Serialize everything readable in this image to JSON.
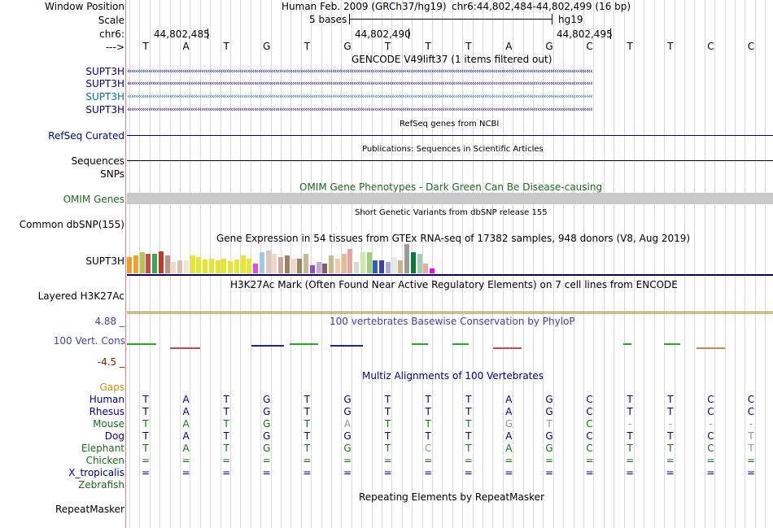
{
  "header": {
    "window_position_label": "Window Position",
    "window_title": "Human Feb. 2009 (GRCh37/hg19)",
    "window_range": "chr6:44,802,484-44,802,499 (16 bp)",
    "scale_label": "Scale",
    "scale_text": "5 bases",
    "assembly": "hg19",
    "chrom_label": "chr6:",
    "coord_ticks": [
      "44,802,485",
      "44,802,490",
      "44,802,495"
    ],
    "strand_label": "--->"
  },
  "bases": [
    "T",
    "A",
    "T",
    "G",
    "T",
    "G",
    "T",
    "T",
    "T",
    "A",
    "G",
    "C",
    "T",
    "T",
    "C",
    "C"
  ],
  "tracks": {
    "gencode": {
      "title": "GENCODE V49lift37 (1 items filtered out)",
      "rows": [
        "SUPT3H",
        "SUPT3H",
        "SUPT3H",
        "SUPT3H"
      ]
    },
    "refseq": {
      "label": "RefSeq Curated",
      "title": "RefSeq genes from NCBI"
    },
    "publications": {
      "title": "Publications: Sequences in Scientific Articles",
      "label": "Sequences"
    },
    "snps_label": "SNPs",
    "omim": {
      "title": "OMIM Gene Phenotypes - Dark Green Can Be Disease-causing",
      "label": "OMIM Genes"
    },
    "dbsnp": {
      "label": "Common dbSNP(155)",
      "title": "Short Genetic Variants from dbSNP release 155"
    },
    "gtex": {
      "title": "Gene Expression in 54 tissues from GTEx RNA-seq of 17382 samples, 948 donors (V8, Aug 2019)",
      "label": "SUPT3H"
    },
    "h3k27ac": {
      "title": "H3K27Ac Mark (Often Found Near Active Regulatory Elements) on 7 cell lines from ENCODE",
      "label": "Layered H3K27Ac"
    },
    "phylop": {
      "title": "100 vertebrates Basewise Conservation by PhyloP",
      "label": "100 Vert. Cons",
      "max": "4.88 _",
      "min": "-4.5 _"
    },
    "gaps_label": "Gaps",
    "multiz": {
      "title": "Multiz Alignments of 100 Vertebrates",
      "species": [
        {
          "name": "Human",
          "seq": [
            "T",
            "A",
            "T",
            "G",
            "T",
            "G",
            "T",
            "T",
            "T",
            "A",
            "G",
            "C",
            "T",
            "T",
            "C",
            "C"
          ]
        },
        {
          "name": "Rhesus",
          "seq": [
            "T",
            "A",
            "T",
            "G",
            "T",
            "G",
            "T",
            "T",
            "T",
            "A",
            "G",
            "C",
            "T",
            "T",
            "C",
            "C"
          ]
        },
        {
          "name": "Mouse",
          "seq": [
            "T",
            "A",
            "T",
            "G",
            "T",
            "A",
            "T",
            "T",
            "T",
            "G",
            "T",
            "C",
            "-",
            "-",
            "-",
            "-"
          ]
        },
        {
          "name": "Dog",
          "seq": [
            "T",
            "A",
            "T",
            "G",
            "T",
            "G",
            "T",
            "T",
            "T",
            "A",
            "G",
            "C",
            "T",
            "T",
            "C",
            "T"
          ]
        },
        {
          "name": "Elephant",
          "seq": [
            "T",
            "A",
            "T",
            "G",
            "T",
            "G",
            "T",
            "C",
            "T",
            "A",
            "G",
            "C",
            "T",
            "T",
            "C",
            "T"
          ]
        },
        {
          "name": "Chicken",
          "seq": [
            "=",
            "=",
            "=",
            "=",
            "=",
            "=",
            "=",
            "=",
            "=",
            "=",
            "=",
            "=",
            "=",
            "=",
            "=",
            "="
          ]
        },
        {
          "name": "X_tropicalis",
          "seq": [
            "=",
            "=",
            "=",
            "=",
            "=",
            "=",
            "=",
            "=",
            "=",
            "=",
            "=",
            "=",
            "=",
            "=",
            "=",
            "="
          ]
        },
        {
          "name": "Zebrafish",
          "seq": []
        }
      ]
    },
    "repeatmasker": {
      "title": "Repeating Elements by RepeatMasker",
      "label": "RepeatMasker"
    }
  },
  "gtex_bars": [
    {
      "color": "#f29b2b",
      "h": 20
    },
    {
      "color": "#f0a030",
      "h": 22
    },
    {
      "color": "#b8c058",
      "h": 26
    },
    {
      "color": "#d04848",
      "h": 24
    },
    {
      "color": "#34a853",
      "h": 24
    },
    {
      "color": "#c0362c",
      "h": 27
    },
    {
      "color": "#c09080",
      "h": 22
    },
    {
      "color": "#f0d8c8",
      "h": 14
    },
    {
      "color": "#d8c0b0",
      "h": 16
    },
    {
      "color": "#f0e8d0",
      "h": 16
    },
    {
      "color": "#e6e630",
      "h": 22
    },
    {
      "color": "#e6e630",
      "h": 20
    },
    {
      "color": "#e6e630",
      "h": 17
    },
    {
      "color": "#e6e630",
      "h": 18
    },
    {
      "color": "#e6e630",
      "h": 16
    },
    {
      "color": "#e6e630",
      "h": 18
    },
    {
      "color": "#e6e630",
      "h": 15
    },
    {
      "color": "#e6e630",
      "h": 17
    },
    {
      "color": "#e6e630",
      "h": 22
    },
    {
      "color": "#e6e630",
      "h": 18
    },
    {
      "color": "#ee44ee",
      "h": 12
    },
    {
      "color": "#a0c8e0",
      "h": 26
    },
    {
      "color": "#d8c8c0",
      "h": 28
    },
    {
      "color": "#f0d8c8",
      "h": 24
    },
    {
      "color": "#c8a898",
      "h": 20
    },
    {
      "color": "#a08060",
      "h": 22
    },
    {
      "color": "#f0d8c8",
      "h": 18
    },
    {
      "color": "#a08060",
      "h": 18
    },
    {
      "color": "#c8b890",
      "h": 24
    },
    {
      "color": "#9050c0",
      "h": 10
    },
    {
      "color": "#c8a8d8",
      "h": 14
    },
    {
      "color": "#806060",
      "h": 12
    },
    {
      "color": "#c8b890",
      "h": 22
    },
    {
      "color": "#f4c8a8",
      "h": 18
    },
    {
      "color": "#e0c090",
      "h": 24
    },
    {
      "color": "#f0a0a0",
      "h": 30
    },
    {
      "color": "#d8d8d8",
      "h": 14
    },
    {
      "color": "#c8e8a8",
      "h": 26
    },
    {
      "color": "#a0d070",
      "h": 26
    },
    {
      "color": "#3060c0",
      "h": 16
    },
    {
      "color": "#4040a0",
      "h": 16
    },
    {
      "color": "#a0b0d0",
      "h": 14
    },
    {
      "color": "#e8e8e8",
      "h": 20
    },
    {
      "color": "#d0b080",
      "h": 16
    },
    {
      "color": "#9a9a9a",
      "h": 36
    },
    {
      "color": "#0a7a3a",
      "h": 26
    },
    {
      "color": "#a0d0a8",
      "h": 24
    },
    {
      "color": "#e8a8a8",
      "h": 12
    },
    {
      "color": "#ee00ee",
      "h": 6
    }
  ],
  "colors": {
    "navy": "#000080",
    "green": "#1a6b1a",
    "pink": "#f08080"
  }
}
